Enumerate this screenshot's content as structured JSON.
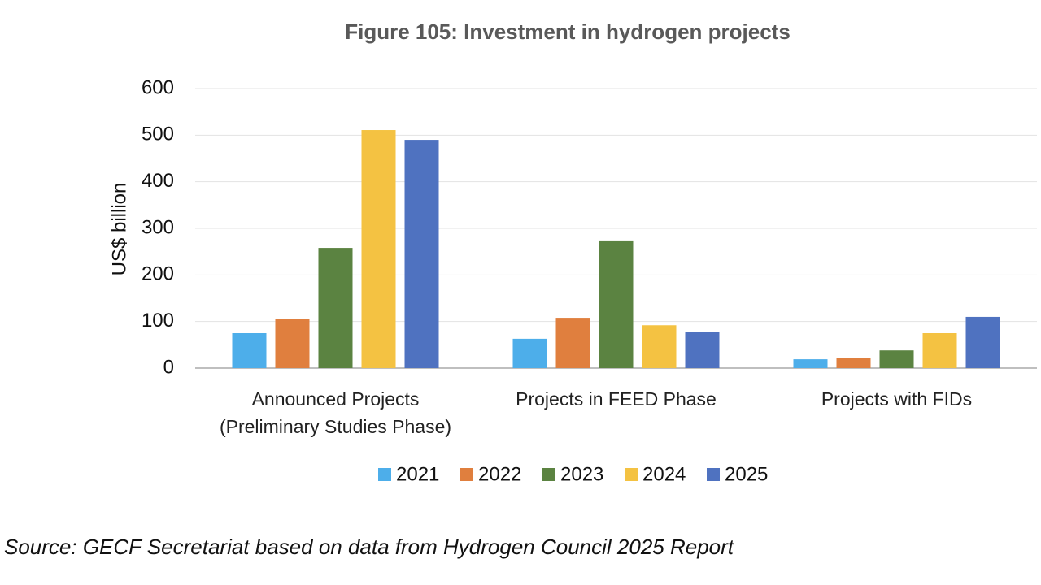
{
  "chart_data": {
    "type": "bar",
    "title": "Figure 105: Investment in hydrogen projects",
    "y_label": "US$ billion",
    "categories": [
      "Announced Projects\n(Preliminary Studies Phase)",
      "Projects in FEED Phase",
      "Projects with FIDs"
    ],
    "series": [
      {
        "name": "2021",
        "color": "#4daeea",
        "values": [
          75,
          63,
          19
        ]
      },
      {
        "name": "2022",
        "color": "#e07f3e",
        "values": [
          106,
          108,
          21
        ]
      },
      {
        "name": "2023",
        "color": "#5b8341",
        "values": [
          258,
          274,
          38
        ]
      },
      {
        "name": "2024",
        "color": "#f4c242",
        "values": [
          511,
          92,
          75
        ]
      },
      {
        "name": "2025",
        "color": "#4f72c0",
        "values": [
          490,
          78,
          110
        ]
      }
    ],
    "ylim": [
      0,
      600
    ],
    "yticks": [
      0,
      100,
      200,
      300,
      400,
      500,
      600
    ],
    "grid": true,
    "source": "Source: GECF Secretariat based on data from Hydrogen Council 2025 Report"
  }
}
